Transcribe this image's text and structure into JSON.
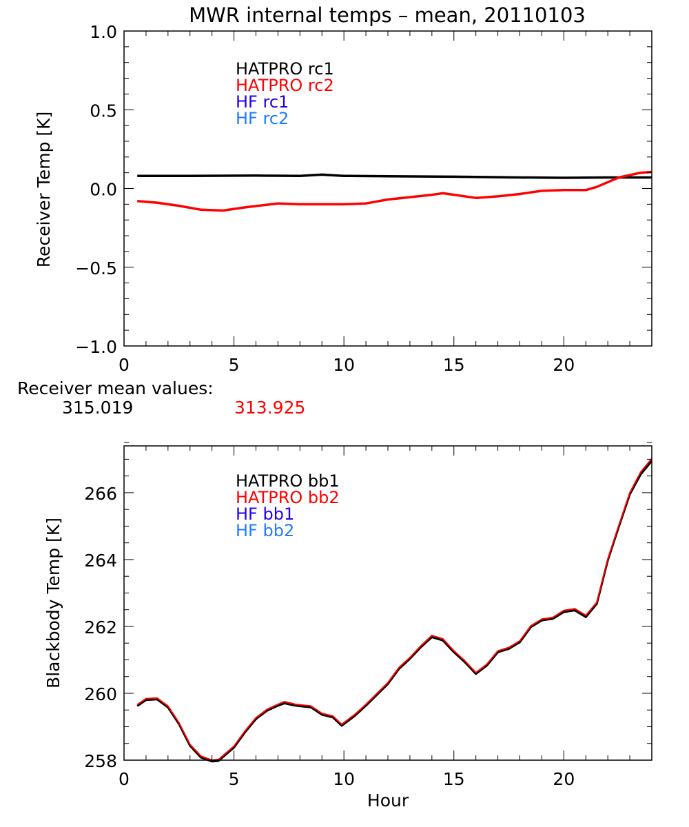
{
  "title": "MWR internal temps – mean, 20110103",
  "mean_values": {
    "label": "Receiver mean values:",
    "rc1": "315.019",
    "rc2": "313.925"
  },
  "colors": {
    "rc1": "#000000",
    "rc2": "#ff0000",
    "hf1": "#2200ee",
    "hf2": "#1e7dff"
  },
  "chart_data": [
    {
      "type": "line",
      "title": "MWR internal temps – mean, 20110103",
      "xlabel": "",
      "ylabel": "Receiver Temp [K]",
      "xlim": [
        0,
        24
      ],
      "ylim": [
        -1.0,
        1.0
      ],
      "xticks": [
        "0",
        "5",
        "10",
        "15",
        "20"
      ],
      "xtick_values": [
        0,
        5,
        10,
        15,
        20
      ],
      "yticks": [
        "−1.0",
        "−0.5",
        "0.0",
        "0.5",
        "1.0"
      ],
      "ytick_values": [
        -1.0,
        -0.5,
        0.0,
        0.5,
        1.0
      ],
      "legend": [
        "HATPRO rc1",
        "HATPRO rc2",
        "HF rc1",
        "HF rc2"
      ],
      "legend_placement": "top-left",
      "series": [
        {
          "name": "HATPRO rc1",
          "color": "#000000",
          "x": [
            0.6,
            3,
            6,
            8,
            9,
            10,
            12,
            15,
            18,
            20,
            22,
            24
          ],
          "y": [
            0.08,
            0.08,
            0.082,
            0.08,
            0.088,
            0.08,
            0.078,
            0.075,
            0.07,
            0.068,
            0.07,
            0.07
          ]
        },
        {
          "name": "HATPRO rc2",
          "color": "#ff0000",
          "x": [
            0.6,
            1.5,
            2.5,
            3.5,
            4.5,
            5.5,
            7,
            8,
            9,
            10,
            11,
            12,
            13,
            14,
            14.5,
            15,
            16,
            17,
            18,
            19,
            20,
            21,
            21.5,
            22.5,
            23.5,
            24
          ],
          "y": [
            -0.08,
            -0.09,
            -0.11,
            -0.135,
            -0.14,
            -0.12,
            -0.095,
            -0.1,
            -0.1,
            -0.1,
            -0.095,
            -0.07,
            -0.055,
            -0.04,
            -0.03,
            -0.04,
            -0.06,
            -0.05,
            -0.035,
            -0.015,
            -0.01,
            -0.01,
            0.01,
            0.07,
            0.1,
            0.105
          ]
        }
      ]
    },
    {
      "type": "line",
      "title": "",
      "xlabel": "Hour",
      "ylabel": "Blackbody Temp [K]",
      "xlim": [
        0,
        24
      ],
      "ylim": [
        258,
        267.4
      ],
      "xticks": [
        "0",
        "5",
        "10",
        "15",
        "20"
      ],
      "xtick_values": [
        0,
        5,
        10,
        15,
        20
      ],
      "yticks": [
        "258",
        "260",
        "262",
        "264",
        "266"
      ],
      "ytick_values": [
        258,
        260,
        262,
        264,
        266
      ],
      "legend": [
        "HATPRO bb1",
        "HATPRO bb2",
        "HF bb1",
        "HF bb2"
      ],
      "legend_placement": "top-left",
      "series": [
        {
          "name": "HATPRO bb1",
          "color": "#000000",
          "x": [
            0.6,
            1.0,
            1.5,
            2.0,
            2.5,
            3.0,
            3.5,
            4.0,
            4.3,
            5.0,
            5.5,
            6.0,
            6.5,
            7.0,
            7.3,
            7.8,
            8.5,
            9.0,
            9.5,
            9.9,
            10.5,
            11.0,
            12.0,
            12.5,
            13.0,
            13.5,
            14.0,
            14.5,
            15.0,
            15.5,
            16.0,
            16.5,
            17.0,
            17.5,
            18.0,
            18.5,
            19.0,
            19.5,
            20.0,
            20.5,
            21.0,
            21.5,
            22.0,
            22.5,
            23.0,
            23.5,
            24.0
          ],
          "y": [
            259.62,
            259.8,
            259.82,
            259.58,
            259.08,
            258.43,
            258.08,
            257.96,
            257.98,
            258.38,
            258.83,
            259.23,
            259.48,
            259.63,
            259.7,
            259.63,
            259.58,
            259.36,
            259.28,
            259.03,
            259.33,
            259.63,
            260.28,
            260.73,
            261.03,
            261.38,
            261.68,
            261.58,
            261.23,
            260.93,
            260.58,
            260.83,
            261.23,
            261.33,
            261.53,
            261.98,
            262.18,
            262.23,
            262.43,
            262.48,
            262.28,
            262.68,
            263.98,
            264.98,
            265.95,
            266.55,
            266.95
          ]
        },
        {
          "name": "HATPRO bb2",
          "color": "#ff0000",
          "x": [
            0.6,
            1.0,
            1.5,
            2.0,
            2.5,
            3.0,
            3.5,
            4.0,
            4.3,
            5.0,
            5.5,
            6.0,
            6.5,
            7.0,
            7.3,
            7.8,
            8.5,
            9.0,
            9.5,
            9.9,
            10.5,
            11.0,
            12.0,
            12.5,
            13.0,
            13.5,
            14.0,
            14.5,
            15.0,
            15.5,
            16.0,
            16.5,
            17.0,
            17.5,
            18.0,
            18.5,
            19.0,
            19.5,
            20.0,
            20.5,
            21.0,
            21.5,
            22.0,
            22.5,
            23.0,
            23.5,
            24.0
          ],
          "y": [
            259.66,
            259.84,
            259.86,
            259.62,
            259.12,
            258.47,
            258.12,
            258.0,
            258.02,
            258.42,
            258.87,
            259.27,
            259.52,
            259.67,
            259.75,
            259.67,
            259.62,
            259.4,
            259.32,
            259.07,
            259.37,
            259.67,
            260.32,
            260.77,
            261.07,
            261.42,
            261.73,
            261.63,
            261.27,
            260.97,
            260.62,
            260.87,
            261.27,
            261.37,
            261.57,
            262.02,
            262.22,
            262.27,
            262.48,
            262.53,
            262.33,
            262.72,
            264.02,
            265.02,
            266.0,
            266.62,
            267.02
          ]
        }
      ]
    }
  ]
}
